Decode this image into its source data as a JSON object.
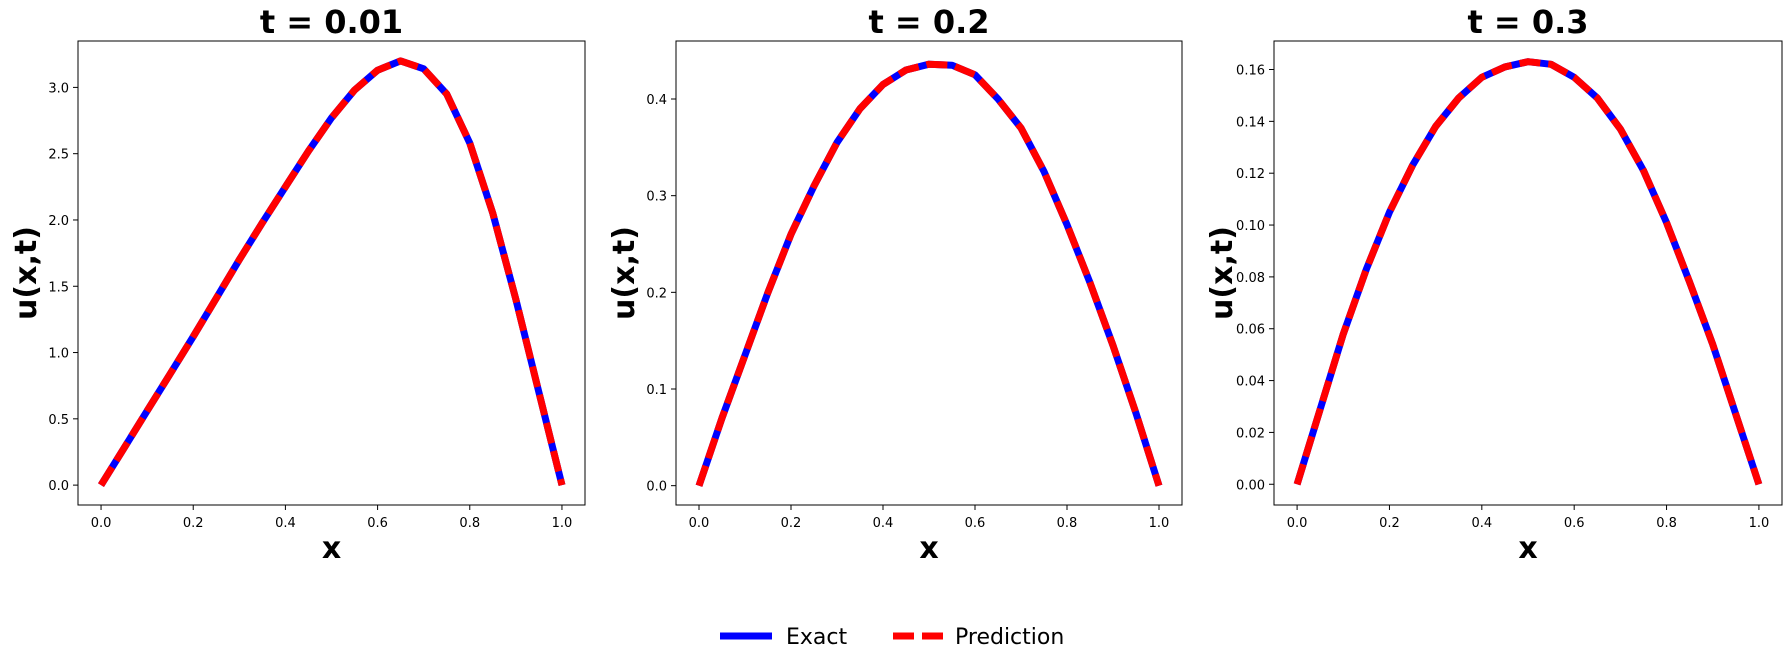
{
  "colors": {
    "exact": "#0000ff",
    "prediction": "#ff0000"
  },
  "legend": {
    "placement": "bottom-center",
    "entries": [
      {
        "label": "Exact",
        "style": "solid",
        "color": "#0000ff"
      },
      {
        "label": "Prediction",
        "style": "dashed",
        "color": "#ff0000"
      }
    ]
  },
  "chart_data": [
    {
      "type": "line",
      "title": "t = 0.01",
      "xlabel": "x",
      "ylabel": "u(x,t)",
      "xlim": [
        -0.05,
        1.05
      ],
      "ylim": [
        -0.15,
        3.35
      ],
      "xticks": [
        "0.0",
        "0.2",
        "0.4",
        "0.6",
        "0.8",
        "1.0"
      ],
      "yticks": [
        "0.0",
        "0.5",
        "1.0",
        "1.5",
        "2.0",
        "2.5",
        "3.0"
      ],
      "grid": false,
      "x": [
        0.0,
        0.05,
        0.1,
        0.15,
        0.2,
        0.25,
        0.3,
        0.35,
        0.4,
        0.45,
        0.5,
        0.55,
        0.6,
        0.65,
        0.7,
        0.75,
        0.8,
        0.85,
        0.9,
        0.95,
        1.0
      ],
      "series": [
        {
          "name": "Exact",
          "values": [
            0.0,
            0.28,
            0.56,
            0.84,
            1.12,
            1.41,
            1.7,
            1.98,
            2.25,
            2.52,
            2.77,
            2.98,
            3.13,
            3.2,
            3.14,
            2.95,
            2.58,
            2.05,
            1.4,
            0.7,
            0.0
          ]
        },
        {
          "name": "Prediction",
          "values": [
            0.0,
            0.28,
            0.56,
            0.84,
            1.12,
            1.41,
            1.7,
            1.98,
            2.25,
            2.52,
            2.77,
            2.98,
            3.13,
            3.2,
            3.14,
            2.95,
            2.58,
            2.05,
            1.4,
            0.7,
            0.0
          ]
        }
      ]
    },
    {
      "type": "line",
      "title": "t = 0.2",
      "xlabel": "x",
      "ylabel": "u(x,t)",
      "xlim": [
        -0.05,
        1.05
      ],
      "ylim": [
        -0.02,
        0.46
      ],
      "xticks": [
        "0.0",
        "0.2",
        "0.4",
        "0.6",
        "0.8",
        "1.0"
      ],
      "yticks": [
        "0.0",
        "0.1",
        "0.2",
        "0.3",
        "0.4"
      ],
      "grid": false,
      "x": [
        0.0,
        0.05,
        0.1,
        0.15,
        0.2,
        0.25,
        0.3,
        0.35,
        0.4,
        0.45,
        0.5,
        0.55,
        0.6,
        0.65,
        0.7,
        0.75,
        0.8,
        0.85,
        0.9,
        0.95,
        1.0
      ],
      "series": [
        {
          "name": "Exact",
          "values": [
            0.0,
            0.07,
            0.135,
            0.2,
            0.26,
            0.31,
            0.355,
            0.39,
            0.415,
            0.43,
            0.436,
            0.435,
            0.425,
            0.4,
            0.37,
            0.325,
            0.27,
            0.21,
            0.145,
            0.075,
            0.0
          ]
        },
        {
          "name": "Prediction",
          "values": [
            0.0,
            0.07,
            0.135,
            0.2,
            0.26,
            0.31,
            0.355,
            0.39,
            0.415,
            0.43,
            0.436,
            0.435,
            0.425,
            0.4,
            0.37,
            0.325,
            0.27,
            0.21,
            0.145,
            0.075,
            0.0
          ]
        }
      ]
    },
    {
      "type": "line",
      "title": "t = 0.3",
      "xlabel": "x",
      "ylabel": "u(x,t)",
      "xlim": [
        -0.05,
        1.05
      ],
      "ylim": [
        -0.008,
        0.171
      ],
      "xticks": [
        "0.0",
        "0.2",
        "0.4",
        "0.6",
        "0.8",
        "1.0"
      ],
      "yticks": [
        "0.00",
        "0.02",
        "0.04",
        "0.06",
        "0.08",
        "0.10",
        "0.12",
        "0.14",
        "0.16"
      ],
      "grid": false,
      "x": [
        0.0,
        0.05,
        0.1,
        0.15,
        0.2,
        0.25,
        0.3,
        0.35,
        0.4,
        0.45,
        0.5,
        0.55,
        0.6,
        0.65,
        0.7,
        0.75,
        0.8,
        0.85,
        0.9,
        0.95,
        1.0
      ],
      "series": [
        {
          "name": "Exact",
          "values": [
            0.0,
            0.029,
            0.058,
            0.083,
            0.105,
            0.123,
            0.138,
            0.149,
            0.157,
            0.161,
            0.163,
            0.162,
            0.157,
            0.149,
            0.137,
            0.121,
            0.101,
            0.078,
            0.054,
            0.027,
            0.0
          ]
        },
        {
          "name": "Prediction",
          "values": [
            0.0,
            0.029,
            0.058,
            0.083,
            0.105,
            0.123,
            0.138,
            0.149,
            0.157,
            0.161,
            0.163,
            0.162,
            0.157,
            0.149,
            0.137,
            0.121,
            0.101,
            0.078,
            0.054,
            0.027,
            0.0
          ]
        }
      ]
    }
  ]
}
